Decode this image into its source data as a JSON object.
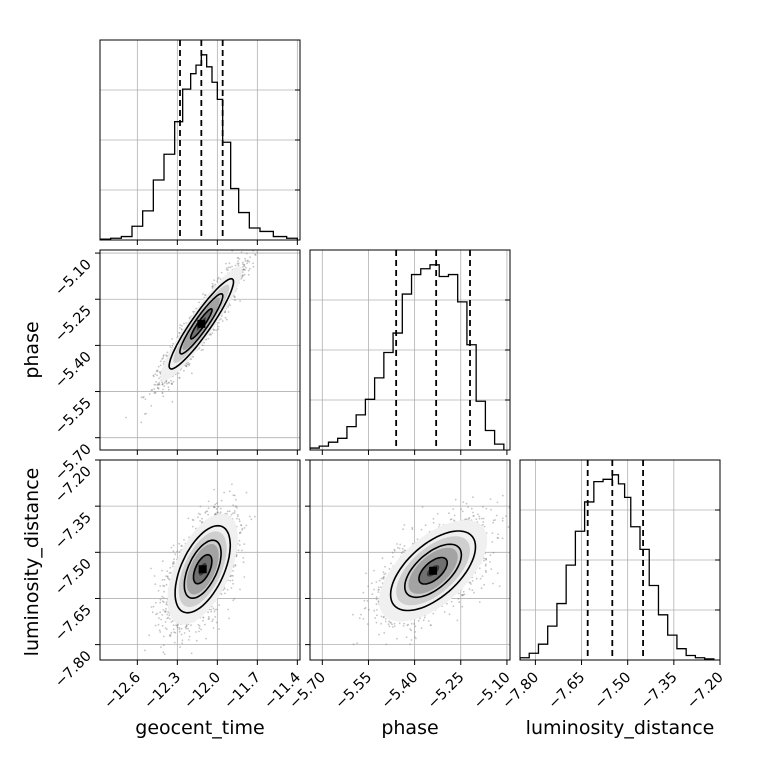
{
  "chart_data": {
    "type": "corner",
    "parameters": [
      "geocent_time",
      "phase",
      "luminosity_distance"
    ],
    "ranges": {
      "geocent_time": [
        -12.88,
        -11.38
      ],
      "phase": [
        -5.74,
        -5.09
      ],
      "luminosity_distance": [
        -7.85,
        -7.2
      ]
    },
    "ticks": {
      "geocent_time": [
        "−12.6",
        "−12.3",
        "−12.0",
        "−11.7",
        "−11.4"
      ],
      "phase": [
        "−5.70",
        "−5.55",
        "−5.40",
        "−5.25",
        "−5.10"
      ],
      "luminosity_distance": [
        "−7.80",
        "−7.65",
        "−7.50",
        "−7.35",
        "−7.20"
      ]
    },
    "tick_values": {
      "geocent_time": [
        -12.6,
        -12.3,
        -12.0,
        -11.7,
        -11.4
      ],
      "phase": [
        -5.7,
        -5.55,
        -5.4,
        -5.25,
        -5.1
      ],
      "luminosity_distance": [
        -7.8,
        -7.65,
        -7.5,
        -7.35,
        -7.2
      ]
    },
    "quantiles": {
      "geocent_time": [
        -12.28,
        -12.12,
        -11.96
      ],
      "phase": [
        -5.46,
        -5.33,
        -5.22
      ],
      "luminosity_distance": [
        -7.63,
        -7.55,
        -7.45
      ]
    },
    "histograms": {
      "geocent_time": {
        "bin_edges": [
          -12.88,
          -12.8,
          -12.72,
          -12.64,
          -12.56,
          -12.48,
          -12.4,
          -12.32,
          -12.26,
          -12.2,
          -12.16,
          -12.12,
          -12.08,
          -12.04,
          -12.0,
          -11.96,
          -11.9,
          -11.84,
          -11.76,
          -11.68,
          -11.58,
          -11.48,
          -11.4
        ],
        "counts": [
          0.5,
          1,
          2,
          8,
          17,
          35,
          50,
          69,
          88,
          97,
          102,
          108,
          101,
          92,
          82,
          57,
          30,
          16,
          7,
          5,
          2,
          1
        ]
      },
      "phase": {
        "bin_edges": [
          -5.74,
          -5.71,
          -5.68,
          -5.65,
          -5.62,
          -5.59,
          -5.56,
          -5.53,
          -5.5,
          -5.47,
          -5.44,
          -5.41,
          -5.38,
          -5.35,
          -5.32,
          -5.29,
          -5.26,
          -5.23,
          -5.2,
          -5.17,
          -5.14,
          -5.11
        ],
        "counts": [
          1,
          2,
          4,
          6,
          12,
          18,
          26,
          37,
          50,
          60,
          80,
          90,
          93,
          95,
          89,
          90,
          76,
          54,
          25,
          10,
          3
        ]
      },
      "luminosity_distance": {
        "bin_edges": [
          -7.85,
          -7.82,
          -7.79,
          -7.76,
          -7.73,
          -7.7,
          -7.67,
          -7.64,
          -7.61,
          -7.58,
          -7.55,
          -7.53,
          -7.51,
          -7.49,
          -7.46,
          -7.43,
          -7.4,
          -7.37,
          -7.34,
          -7.31,
          -7.28,
          -7.25,
          -7.22
        ],
        "counts": [
          1,
          3,
          7,
          15,
          25,
          42,
          57,
          70,
          79,
          80,
          82,
          78,
          72,
          59,
          49,
          33,
          20,
          11,
          5,
          2,
          1,
          0.5
        ]
      }
    },
    "pairs": [
      {
        "x": "geocent_time",
        "y": "phase",
        "mean": [
          -12.12,
          -5.33
        ],
        "sd": [
          0.14,
          0.085
        ],
        "corr": 0.93
      },
      {
        "x": "geocent_time",
        "y": "luminosity_distance",
        "mean": [
          -12.11,
          -7.555
        ],
        "sd": [
          0.12,
          0.082
        ],
        "corr": 0.55
      },
      {
        "x": "phase",
        "y": "luminosity_distance",
        "mean": [
          -5.34,
          -7.56
        ],
        "sd": [
          0.08,
          0.075
        ],
        "corr": 0.6
      }
    ],
    "contour_levels": [
      0.5,
      1.0,
      1.5
    ],
    "grid": true,
    "colors": {
      "points": "#7f7f7f",
      "lines": "#000000",
      "grid": "#b0b0b0"
    }
  }
}
